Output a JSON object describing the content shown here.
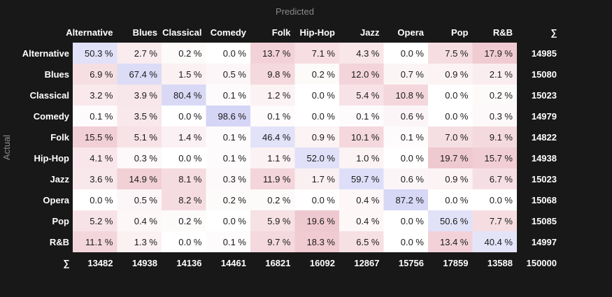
{
  "chart_data": {
    "type": "heatmap",
    "xlabel": "Predicted",
    "ylabel": "Actual",
    "sum_symbol": "∑",
    "classes": [
      "Alternative",
      "Blues",
      "Classical",
      "Comedy",
      "Folk",
      "Hip-Hop",
      "Jazz",
      "Opera",
      "Pop",
      "R&B"
    ],
    "matrix": [
      [
        "50.3 %",
        "2.7 %",
        "0.2 %",
        "0.0 %",
        "13.7 %",
        "7.1 %",
        "4.3 %",
        "0.0 %",
        "7.5 %",
        "17.9 %"
      ],
      [
        "6.9 %",
        "67.4 %",
        "1.5 %",
        "0.5 %",
        "9.8 %",
        "0.2 %",
        "12.0 %",
        "0.7 %",
        "0.9 %",
        "2.1 %"
      ],
      [
        "3.2 %",
        "3.9 %",
        "80.4 %",
        "0.1 %",
        "1.2 %",
        "0.0 %",
        "5.4 %",
        "10.8 %",
        "0.0 %",
        "0.2 %"
      ],
      [
        "0.1 %",
        "3.5 %",
        "0.0 %",
        "98.6 %",
        "0.1 %",
        "0.0 %",
        "0.1 %",
        "0.6 %",
        "0.0 %",
        "0.3 %"
      ],
      [
        "15.5 %",
        "5.1 %",
        "1.4 %",
        "0.1 %",
        "46.4 %",
        "0.9 %",
        "10.1 %",
        "0.1 %",
        "7.0 %",
        "9.1 %"
      ],
      [
        "4.1 %",
        "0.3 %",
        "0.0 %",
        "0.1 %",
        "1.1 %",
        "52.0 %",
        "1.0 %",
        "0.0 %",
        "19.7 %",
        "15.7 %"
      ],
      [
        "3.6 %",
        "14.9 %",
        "8.1 %",
        "0.3 %",
        "11.9 %",
        "1.7 %",
        "59.7 %",
        "0.6 %",
        "0.9 %",
        "6.7 %"
      ],
      [
        "0.0 %",
        "0.5 %",
        "8.2 %",
        "0.2 %",
        "0.2 %",
        "0.0 %",
        "0.4 %",
        "87.2 %",
        "0.0 %",
        "0.0 %"
      ],
      [
        "5.2 %",
        "0.4 %",
        "0.2 %",
        "0.0 %",
        "5.9 %",
        "19.6 %",
        "0.4 %",
        "0.0 %",
        "50.6 %",
        "7.7 %"
      ],
      [
        "11.1 %",
        "1.3 %",
        "0.0 %",
        "0.1 %",
        "9.7 %",
        "18.3 %",
        "6.5 %",
        "0.0 %",
        "13.4 %",
        "40.4 %"
      ]
    ],
    "row_sums": [
      "14985",
      "15080",
      "15023",
      "14979",
      "14822",
      "14938",
      "15023",
      "15068",
      "15085",
      "14997"
    ],
    "col_sums": [
      "13482",
      "14938",
      "14136",
      "14461",
      "16821",
      "16092",
      "12867",
      "15756",
      "17859",
      "13588"
    ],
    "total": "150000",
    "colors": {
      "background": "#181818",
      "diagonal_max": "#d2d2f5",
      "offdiag_max": "#efc7cf",
      "cell_base": "#ffffff",
      "label_text": "#ffffff",
      "cell_text": "#1a1a1a",
      "axis_title": "#8a8a8a"
    }
  }
}
